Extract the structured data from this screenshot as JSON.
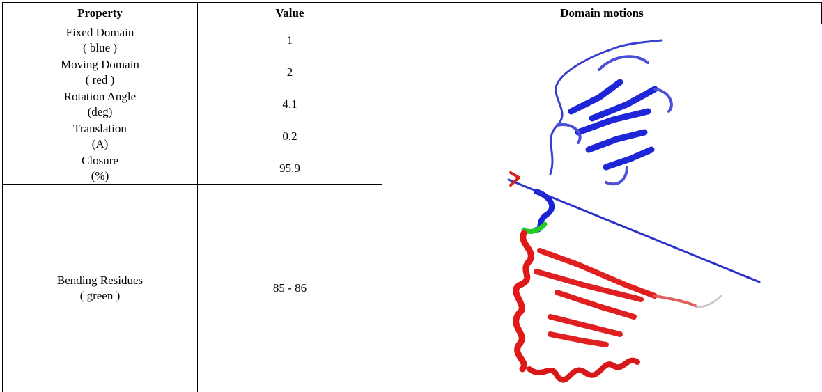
{
  "table": {
    "headers": [
      "Property",
      "Value",
      "Domain motions"
    ],
    "rows": [
      {
        "property": "Fixed Domain",
        "detail": "( blue )",
        "value": "1"
      },
      {
        "property": "Moving Domain",
        "detail": "( red )",
        "value": "2"
      },
      {
        "property": "Rotation Angle",
        "detail": "(deg)",
        "value": "4.1"
      },
      {
        "property": "Translation",
        "detail": "(A)",
        "value": "0.2"
      },
      {
        "property": "Closure",
        "detail": "(%)",
        "value": "95.9"
      },
      {
        "property": "Bending Residues",
        "detail": "( green )",
        "value": "85 - 86"
      }
    ]
  }
}
